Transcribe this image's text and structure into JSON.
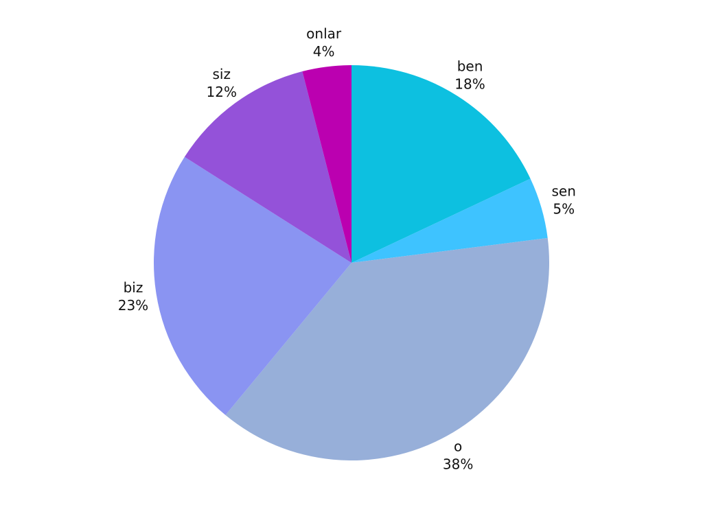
{
  "chart_data": {
    "type": "pie",
    "categories": [
      "ben",
      "sen",
      "o",
      "biz",
      "siz",
      "onlar"
    ],
    "values": [
      18,
      5,
      38,
      23,
      12,
      4
    ],
    "value_labels": [
      "18%",
      "5%",
      "38%",
      "23%",
      "12%",
      "4%"
    ],
    "colors": [
      "#0dc0e0",
      "#3ec3ff",
      "#97afd9",
      "#8a94f2",
      "#9452d9",
      "#bb00b0"
    ]
  }
}
